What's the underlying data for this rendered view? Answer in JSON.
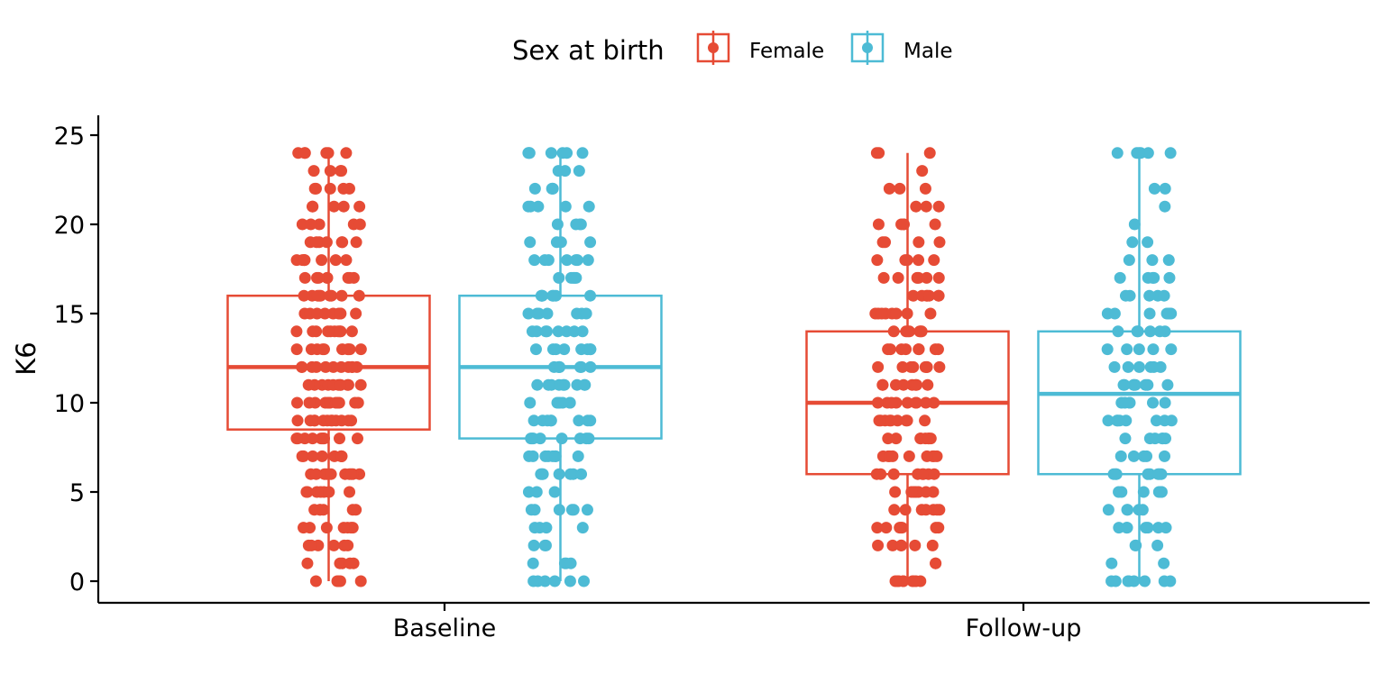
{
  "chart_data": {
    "type": "boxplot",
    "ylabel": "K6",
    "xlabel": "",
    "ylim": [
      0,
      25
    ],
    "yticks": [
      0,
      5,
      10,
      15,
      20,
      25
    ],
    "categories": [
      "Baseline",
      "Follow-up"
    ],
    "legend": {
      "title": "Sex at birth",
      "placement": "top"
    },
    "grid": false,
    "series": [
      {
        "name": "Female",
        "color": "#E64B35",
        "boxes": [
          {
            "category": "Baseline",
            "min": 0,
            "q1": 8.5,
            "median": 12,
            "q3": 16,
            "max": 24
          },
          {
            "category": "Follow-up",
            "min": 0,
            "q1": 6,
            "median": 10,
            "q3": 14,
            "max": 24
          }
        ],
        "points": [
          {
            "category": "Baseline",
            "values": [
              0,
              0,
              0,
              0,
              0,
              1,
              1,
              1,
              1,
              1,
              2,
              2,
              2,
              2,
              2,
              2,
              3,
              3,
              3,
              3,
              3,
              3,
              3,
              4,
              4,
              4,
              4,
              4,
              4,
              5,
              5,
              5,
              5,
              5,
              5,
              5,
              6,
              6,
              6,
              6,
              6,
              6,
              6,
              6,
              6,
              6,
              7,
              7,
              7,
              7,
              7,
              7,
              7,
              7,
              8,
              8,
              8,
              8,
              8,
              8,
              8,
              8,
              8,
              8,
              9,
              9,
              9,
              9,
              9,
              9,
              9,
              9,
              9,
              9,
              9,
              9,
              10,
              10,
              10,
              10,
              10,
              10,
              10,
              10,
              10,
              10,
              10,
              10,
              11,
              11,
              11,
              11,
              11,
              11,
              11,
              11,
              11,
              11,
              11,
              12,
              12,
              12,
              12,
              12,
              12,
              12,
              12,
              12,
              12,
              12,
              13,
              13,
              13,
              13,
              13,
              13,
              13,
              13,
              13,
              13,
              14,
              14,
              14,
              14,
              14,
              14,
              14,
              14,
              14,
              14,
              15,
              15,
              15,
              15,
              15,
              15,
              15,
              15,
              15,
              15,
              16,
              16,
              16,
              16,
              16,
              16,
              16,
              16,
              16,
              17,
              17,
              17,
              17,
              17,
              17,
              17,
              17,
              18,
              18,
              18,
              18,
              18,
              18,
              18,
              18,
              19,
              19,
              19,
              19,
              19,
              19,
              19,
              20,
              20,
              20,
              20,
              20,
              21,
              21,
              21,
              21,
              21,
              22,
              22,
              22,
              22,
              22,
              23,
              23,
              23,
              23,
              24,
              24,
              24,
              24,
              24,
              24
            ]
          },
          {
            "category": "Follow-up",
            "values": [
              0,
              0,
              0,
              0,
              0,
              0,
              0,
              0,
              0,
              1,
              1,
              2,
              2,
              2,
              2,
              2,
              2,
              3,
              3,
              3,
              3,
              3,
              3,
              3,
              4,
              4,
              4,
              4,
              4,
              4,
              4,
              5,
              5,
              5,
              5,
              5,
              5,
              5,
              6,
              6,
              6,
              6,
              6,
              6,
              6,
              6,
              7,
              7,
              7,
              7,
              7,
              7,
              7,
              7,
              7,
              8,
              8,
              8,
              8,
              8,
              8,
              8,
              8,
              9,
              9,
              9,
              9,
              9,
              9,
              9,
              9,
              9,
              10,
              10,
              10,
              10,
              10,
              10,
              10,
              10,
              10,
              11,
              11,
              11,
              11,
              11,
              11,
              11,
              11,
              12,
              12,
              12,
              12,
              12,
              12,
              12,
              12,
              13,
              13,
              13,
              13,
              13,
              13,
              13,
              13,
              14,
              14,
              14,
              14,
              14,
              14,
              14,
              15,
              15,
              15,
              15,
              15,
              15,
              15,
              15,
              16,
              16,
              16,
              16,
              16,
              16,
              16,
              17,
              17,
              17,
              17,
              17,
              17,
              18,
              18,
              18,
              18,
              18,
              19,
              19,
              19,
              19,
              20,
              20,
              20,
              20,
              20,
              21,
              21,
              21,
              22,
              22,
              22,
              23,
              24,
              24,
              24
            ]
          }
        ]
      },
      {
        "name": "Male",
        "color": "#4DBBD5",
        "boxes": [
          {
            "category": "Baseline",
            "min": 0,
            "q1": 8,
            "median": 12,
            "q3": 16,
            "max": 24
          },
          {
            "category": "Follow-up",
            "min": 0,
            "q1": 6,
            "median": 10.5,
            "q3": 14,
            "max": 24
          }
        ],
        "points": [
          {
            "category": "Baseline",
            "values": [
              0,
              0,
              0,
              0,
              0,
              0,
              1,
              1,
              1,
              1,
              2,
              2,
              2,
              3,
              3,
              3,
              3,
              4,
              4,
              4,
              4,
              4,
              4,
              5,
              5,
              5,
              6,
              6,
              6,
              6,
              6,
              6,
              6,
              7,
              7,
              7,
              7,
              7,
              7,
              7,
              7,
              8,
              8,
              8,
              8,
              8,
              8,
              8,
              8,
              9,
              9,
              9,
              9,
              9,
              9,
              9,
              9,
              10,
              10,
              10,
              10,
              10,
              10,
              10,
              11,
              11,
              11,
              11,
              11,
              11,
              11,
              11,
              11,
              12,
              12,
              12,
              12,
              12,
              12,
              12,
              13,
              13,
              13,
              13,
              13,
              13,
              13,
              13,
              14,
              14,
              14,
              14,
              14,
              14,
              14,
              14,
              15,
              15,
              15,
              15,
              15,
              15,
              15,
              16,
              16,
              16,
              16,
              16,
              16,
              16,
              17,
              17,
              17,
              17,
              17,
              18,
              18,
              18,
              18,
              18,
              18,
              18,
              19,
              19,
              19,
              19,
              20,
              20,
              20,
              20,
              21,
              21,
              21,
              21,
              21,
              22,
              22,
              22,
              22,
              23,
              23,
              23,
              24,
              24,
              24,
              24,
              24,
              24,
              24
            ]
          },
          {
            "category": "Follow-up",
            "values": [
              0,
              0,
              0,
              0,
              0,
              0,
              0,
              0,
              1,
              1,
              2,
              2,
              2,
              3,
              3,
              3,
              3,
              3,
              3,
              3,
              4,
              4,
              4,
              4,
              4,
              5,
              5,
              5,
              5,
              5,
              5,
              6,
              6,
              6,
              6,
              6,
              6,
              6,
              6,
              7,
              7,
              7,
              7,
              7,
              8,
              8,
              8,
              8,
              8,
              8,
              9,
              9,
              9,
              9,
              9,
              9,
              9,
              9,
              10,
              10,
              10,
              10,
              10,
              10,
              11,
              11,
              11,
              11,
              11,
              11,
              11,
              11,
              12,
              12,
              12,
              12,
              12,
              12,
              13,
              13,
              13,
              13,
              13,
              14,
              14,
              14,
              14,
              14,
              14,
              15,
              15,
              15,
              15,
              15,
              15,
              15,
              16,
              16,
              16,
              16,
              16,
              17,
              17,
              17,
              17,
              17,
              18,
              18,
              18,
              19,
              19,
              20,
              21,
              22,
              22,
              24,
              24,
              24,
              24,
              24,
              24
            ]
          }
        ]
      }
    ]
  }
}
